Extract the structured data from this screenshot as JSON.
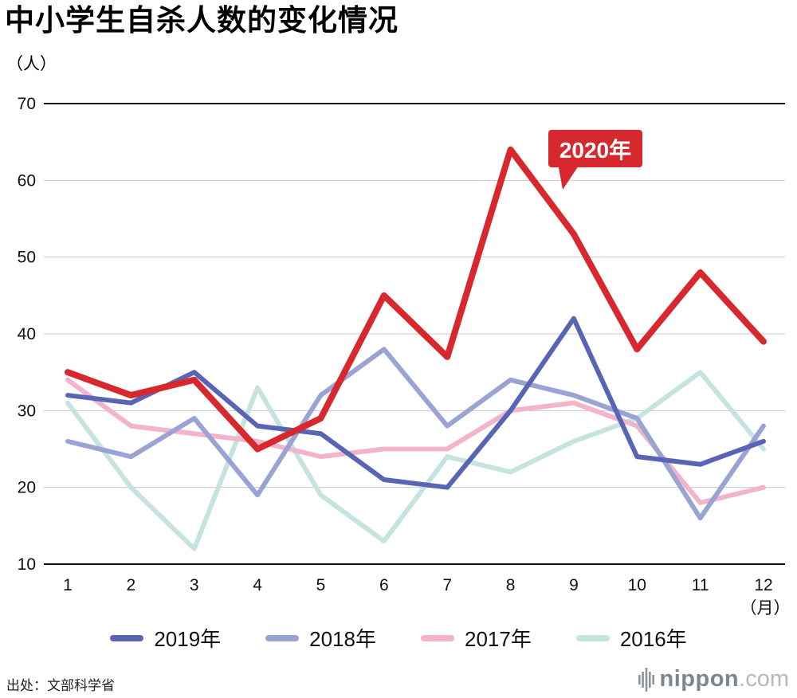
{
  "chart_data": {
    "type": "line",
    "title": "中小学生自杀人数的变化情况",
    "y_unit": "（人）",
    "x_unit": "（月）",
    "x": [
      1,
      2,
      3,
      4,
      5,
      6,
      7,
      8,
      9,
      10,
      11,
      12
    ],
    "ylim": [
      10,
      70
    ],
    "yticks": [
      10,
      20,
      30,
      40,
      50,
      60,
      70
    ],
    "grid": "horizontal",
    "legend_position": "bottom",
    "annotation": {
      "label": "2020年",
      "color": "#d7282e",
      "attached_series": "2020年"
    },
    "series": [
      {
        "name": "2020年",
        "color": "#d7282e",
        "width": 8,
        "in_legend": false,
        "values": [
          35,
          32,
          34,
          25,
          29,
          45,
          37,
          64,
          53,
          38,
          48,
          39
        ]
      },
      {
        "name": "2019年",
        "color": "#5a64b5",
        "width": 6,
        "in_legend": true,
        "values": [
          32,
          31,
          35,
          28,
          27,
          21,
          20,
          30,
          42,
          24,
          23,
          26
        ]
      },
      {
        "name": "2018年",
        "color": "#9aa4d4",
        "width": 6,
        "in_legend": true,
        "values": [
          26,
          24,
          29,
          19,
          32,
          38,
          28,
          34,
          32,
          29,
          16,
          28
        ]
      },
      {
        "name": "2017年",
        "color": "#f3b3ca",
        "width": 6,
        "in_legend": true,
        "values": [
          34,
          28,
          27,
          26,
          24,
          25,
          25,
          30,
          31,
          28,
          18,
          20
        ]
      },
      {
        "name": "2016年",
        "color": "#c5e4e0",
        "width": 6,
        "in_legend": true,
        "values": [
          31,
          20,
          12,
          33,
          19,
          13,
          24,
          22,
          26,
          29,
          35,
          25
        ]
      }
    ],
    "source": "出处：文部科学省",
    "logo": {
      "name": "nippon",
      "tld": ".com"
    }
  }
}
